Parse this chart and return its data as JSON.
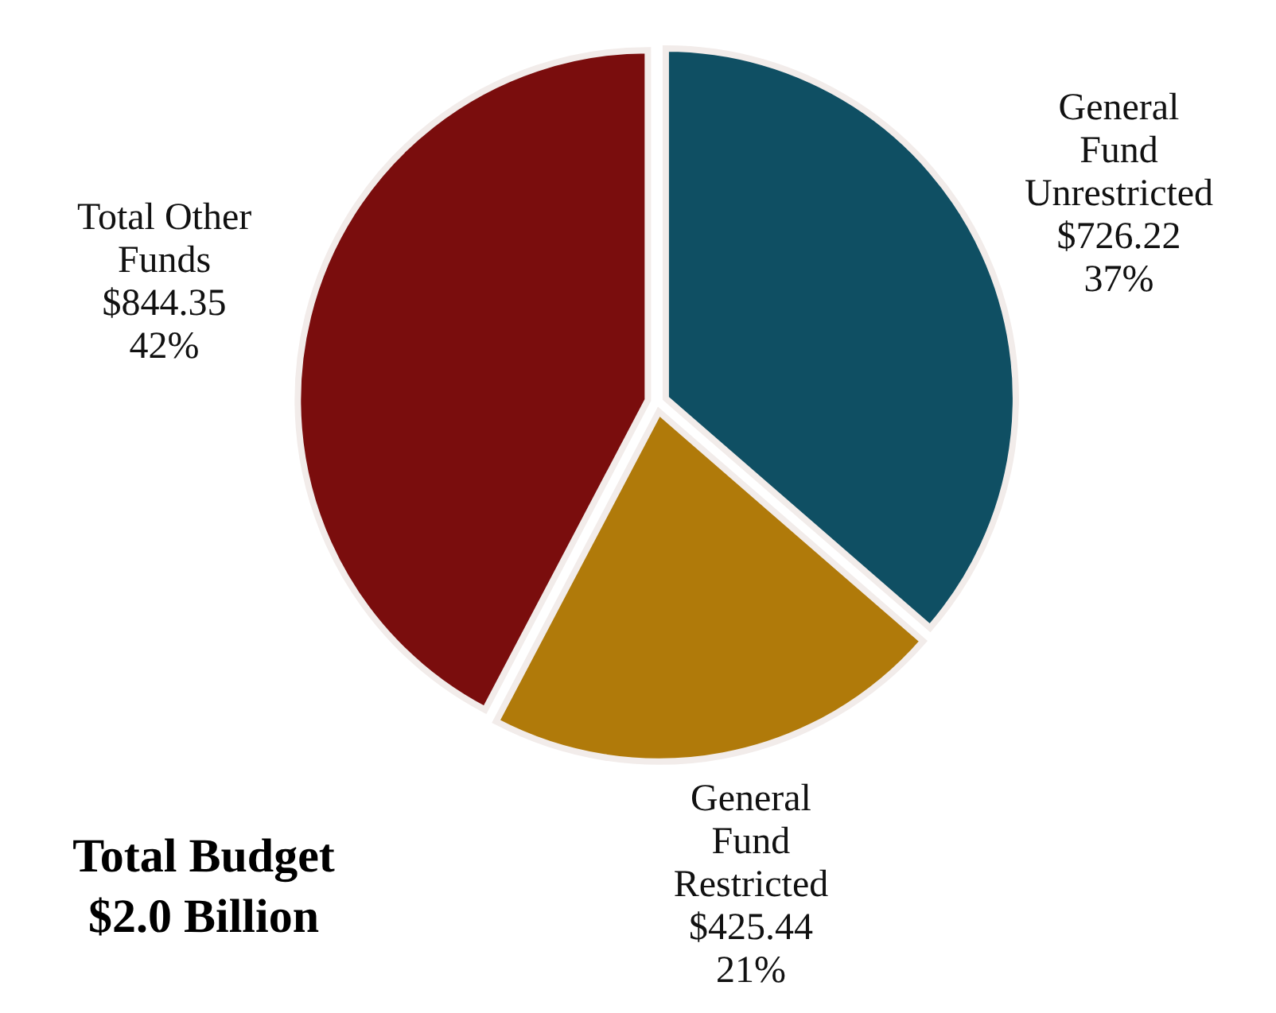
{
  "chart_data": {
    "type": "pie",
    "title": "Total Budget\n$2.0 Billion",
    "categories": [
      "General\nFund\nUnrestricted",
      "General\nFund\nRestricted",
      "Total Other\nFunds"
    ],
    "values": [
      726.22,
      425.44,
      844.35
    ],
    "colors": [
      "#0f4f63",
      "#b07a0a",
      "#7a0d0d"
    ],
    "value_labels": [
      "$726.22\n37%",
      "$425.44\n21%",
      "$844.35\n42%"
    ]
  }
}
